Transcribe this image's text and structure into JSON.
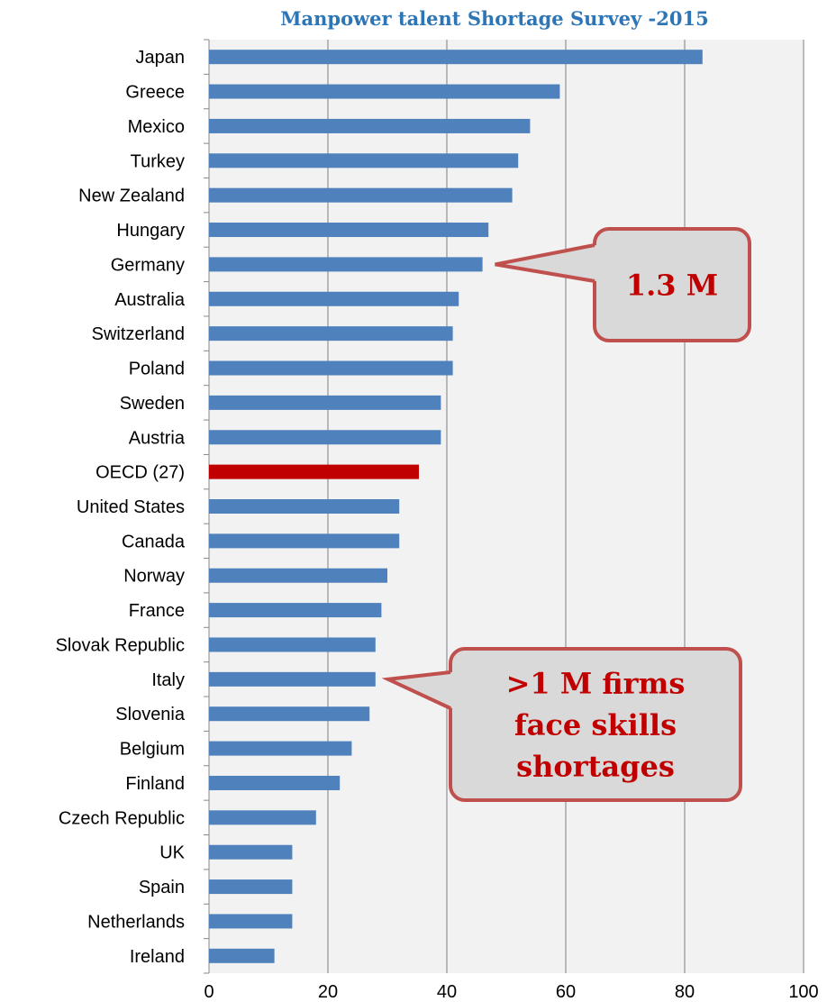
{
  "chart_data": {
    "type": "bar",
    "orientation": "horizontal",
    "title": "Manpower talent Shortage Survey -2015",
    "xlabel": "",
    "ylabel": "",
    "xlim": [
      0,
      100
    ],
    "xticks": [
      0,
      20,
      40,
      60,
      80,
      100
    ],
    "grid": true,
    "categories": [
      "Japan",
      "Greece",
      "Mexico",
      "Turkey",
      "New Zealand",
      "Hungary",
      "Germany",
      "Australia",
      "Switzerland",
      "Poland",
      "Sweden",
      "Austria",
      "OECD (27)",
      "United States",
      "Canada",
      "Norway",
      "France",
      "Slovak Republic",
      "Italy",
      "Slovenia",
      "Belgium",
      "Finland",
      "Czech Republic",
      "UK",
      "Spain",
      "Netherlands",
      "Ireland"
    ],
    "values": [
      83,
      59,
      54,
      52,
      51,
      47,
      46,
      42,
      41,
      41,
      39,
      39,
      35.3,
      32,
      32,
      30,
      29,
      28,
      28,
      27,
      24,
      22,
      18,
      14,
      14,
      14,
      11
    ],
    "highlight_category": "OECD (27)",
    "colors": {
      "bar": "#4f81bd",
      "highlight": "#c00000",
      "plot_background": "#f2f2f2",
      "grid": "#7f7f7f"
    },
    "annotations": [
      {
        "lines": [
          "1.3 M"
        ],
        "points_to": "Germany"
      },
      {
        "lines": [
          ">1 M firms",
          "face skills",
          "shortages"
        ],
        "points_to": "Italy"
      }
    ],
    "annotation_style": {
      "fill": "#d9d9d9",
      "border": "#c0504d",
      "text": "#c00000"
    }
  }
}
